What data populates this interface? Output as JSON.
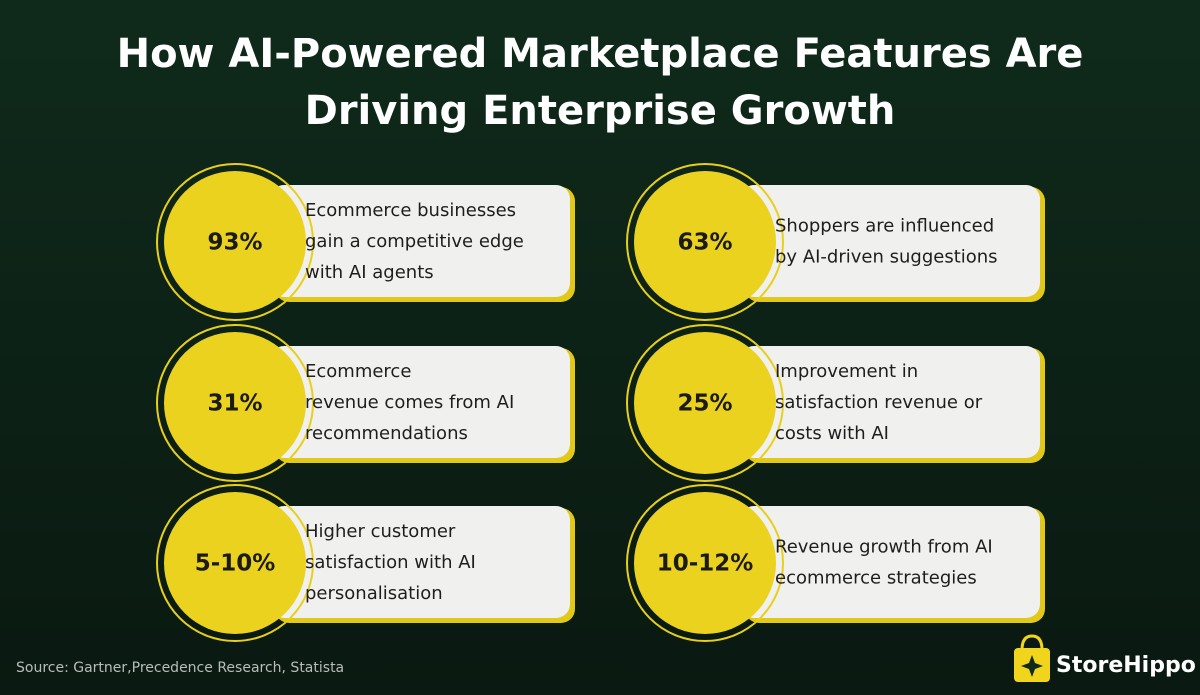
{
  "header": {
    "title": [
      "How AI-Powered Marketplace Features Are",
      "Driving Enterprise Growth"
    ]
  },
  "cards": [
    {
      "stat": "93%",
      "lines": [
        "Ecommerce businesses",
        "gain a competitive edge",
        "with AI agents"
      ]
    },
    {
      "stat": "63%",
      "lines": [
        "Shoppers are influenced",
        "by AI-driven suggestions"
      ]
    },
    {
      "stat": "31%",
      "lines": [
        "Ecommerce",
        "revenue comes from AI",
        "recommendations"
      ]
    },
    {
      "stat": "25%",
      "lines": [
        "Improvement in",
        "satisfaction revenue or",
        "costs with AI"
      ]
    },
    {
      "stat": "5-10%",
      "lines": [
        "Higher customer",
        "satisfaction with AI",
        "personalisation"
      ]
    },
    {
      "stat": "10-12%",
      "lines": [
        "Revenue growth from AI",
        "ecommerce strategies"
      ]
    }
  ],
  "footer": {
    "source": "Source: Gartner,Precedence Research, Statista",
    "brand": "StoreHippo"
  }
}
